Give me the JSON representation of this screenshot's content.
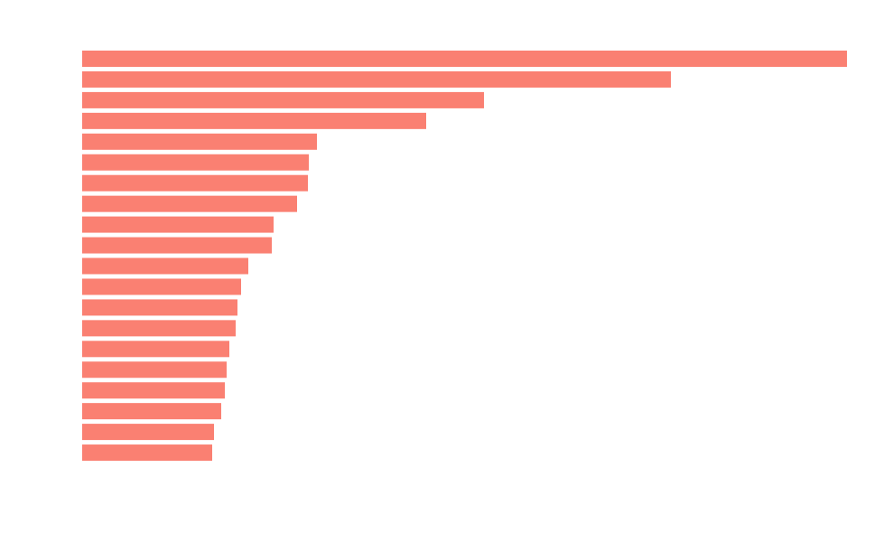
{
  "chart_data": {
    "type": "barh",
    "values": [
      847,
      652,
      445,
      381,
      260,
      251,
      250,
      238,
      212,
      210,
      184,
      176,
      172,
      170,
      163,
      160,
      158,
      154,
      146,
      144
    ],
    "color": "#fa8072",
    "xlim": [
      0,
      847
    ]
  }
}
